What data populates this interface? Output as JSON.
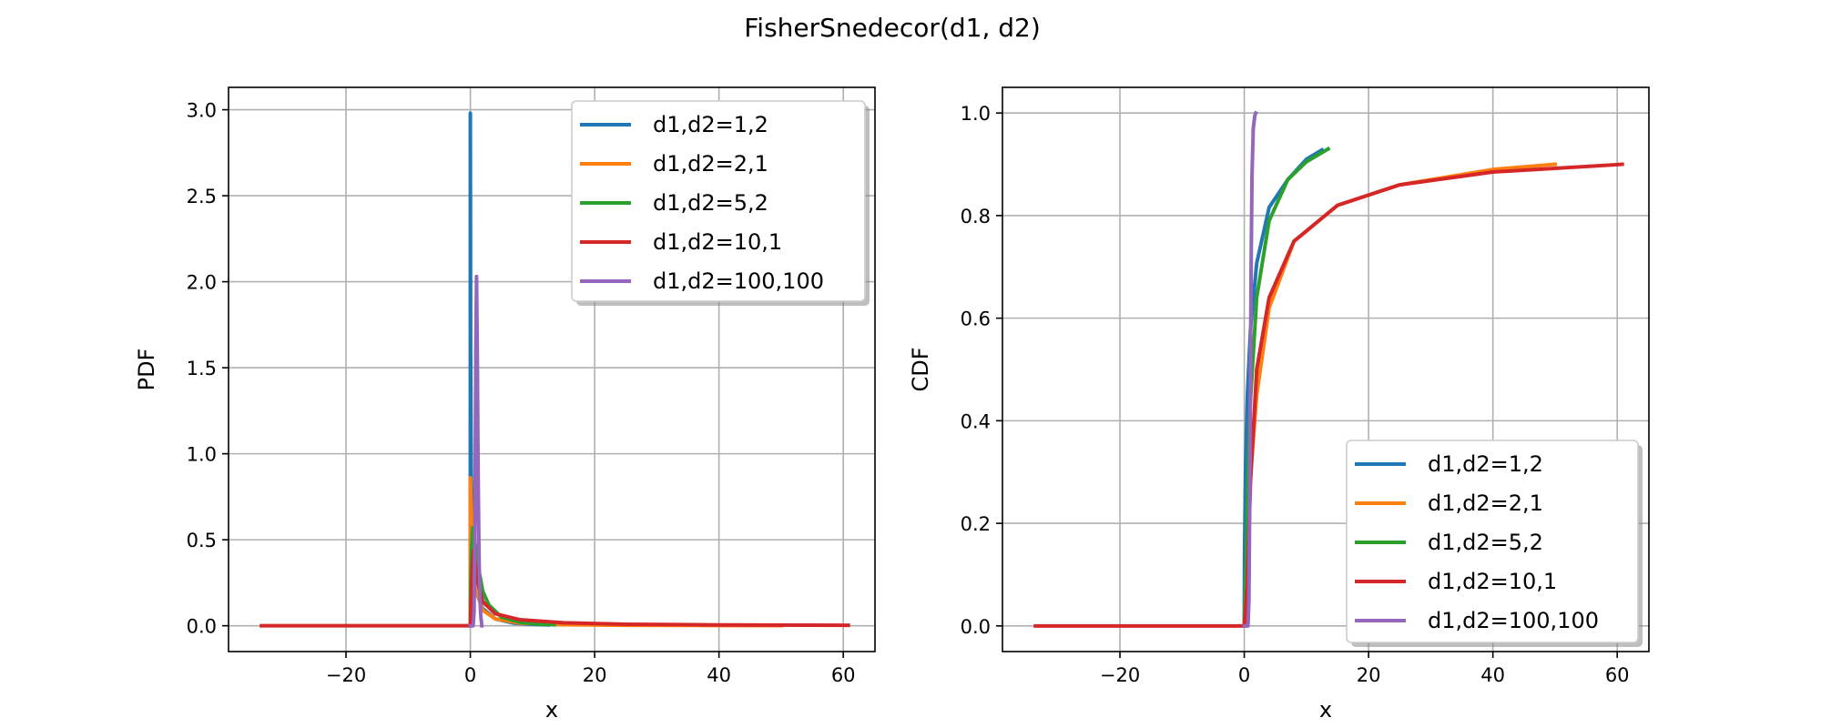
{
  "figure": {
    "title": "FisherSnedecor(d1, d2)"
  },
  "chart_data": [
    {
      "type": "line",
      "name": "pdf-chart",
      "xlabel": "x",
      "ylabel": "PDF",
      "xlim": [
        -38.9,
        65.1
      ],
      "ylim": [
        -0.15,
        3.13
      ],
      "xticks": [
        -20,
        0,
        20,
        40,
        60
      ],
      "xtick_labels": [
        "−20",
        "0",
        "20",
        "40",
        "60"
      ],
      "yticks": [
        0.0,
        0.5,
        1.0,
        1.5,
        2.0,
        2.5,
        3.0
      ],
      "ytick_labels": [
        "0.0",
        "0.5",
        "1.0",
        "1.5",
        "2.0",
        "2.5",
        "3.0"
      ],
      "grid": true,
      "legend": "top-right",
      "series": [
        {
          "name": "d1,d2=1,2",
          "color": "#1f77b4",
          "points": [
            [
              0.0,
              0.0
            ],
            [
              0.001,
              2.98
            ],
            [
              0.05,
              1.6
            ],
            [
              0.15,
              0.9
            ],
            [
              0.3,
              0.6
            ],
            [
              0.6,
              0.38
            ],
            [
              1.0,
              0.19
            ],
            [
              2,
              0.1
            ],
            [
              4,
              0.04
            ],
            [
              7,
              0.015
            ],
            [
              10,
              0.008
            ],
            [
              12.5,
              0.005
            ]
          ]
        },
        {
          "name": "d1,d2=2,1",
          "color": "#ff7f0e",
          "points": [
            [
              0.0,
              0.0
            ],
            [
              0.01,
              0.86
            ],
            [
              0.2,
              0.6
            ],
            [
              0.5,
              0.4
            ],
            [
              1.0,
              0.2
            ],
            [
              2.0,
              0.09
            ],
            [
              4.0,
              0.04
            ],
            [
              8,
              0.015
            ],
            [
              15,
              0.006
            ],
            [
              25,
              0.003
            ],
            [
              40,
              0.0015
            ],
            [
              50,
              0.001
            ]
          ]
        },
        {
          "name": "d1,d2=5,2",
          "color": "#2ca02c",
          "points": [
            [
              0.0,
              0.0
            ],
            [
              0.05,
              0.2
            ],
            [
              0.2,
              0.45
            ],
            [
              0.4,
              0.57
            ],
            [
              0.7,
              0.5
            ],
            [
              1.0,
              0.4
            ],
            [
              2.0,
              0.2
            ],
            [
              3,
              0.12
            ],
            [
              5,
              0.05
            ],
            [
              8,
              0.02
            ],
            [
              11,
              0.01
            ],
            [
              13.5,
              0.006
            ]
          ]
        },
        {
          "name": "d1,d2=10,1",
          "color": "#d62728",
          "points": [
            [
              -33.6,
              0.0
            ],
            [
              0.0,
              0.0
            ],
            [
              0.3,
              0.33
            ],
            [
              0.5,
              0.44
            ],
            [
              0.8,
              0.36
            ],
            [
              1.2,
              0.25
            ],
            [
              2,
              0.14
            ],
            [
              4,
              0.07
            ],
            [
              8,
              0.035
            ],
            [
              15,
              0.017
            ],
            [
              25,
              0.009
            ],
            [
              40,
              0.005
            ],
            [
              60.8,
              0.003
            ]
          ]
        },
        {
          "name": "d1,d2=100,100",
          "color": "#9467bd",
          "points": [
            [
              0.0,
              0.0
            ],
            [
              0.45,
              0.0
            ],
            [
              0.6,
              0.08
            ],
            [
              0.75,
              0.6
            ],
            [
              0.88,
              1.6
            ],
            [
              1.0,
              2.03
            ],
            [
              1.12,
              1.6
            ],
            [
              1.25,
              0.9
            ],
            [
              1.4,
              0.4
            ],
            [
              1.55,
              0.15
            ],
            [
              1.7,
              0.05
            ],
            [
              1.85,
              0.0
            ]
          ]
        }
      ]
    },
    {
      "type": "line",
      "name": "cdf-chart",
      "xlabel": "x",
      "ylabel": "CDF",
      "xlim": [
        -38.9,
        65.1
      ],
      "ylim": [
        -0.05,
        1.05
      ],
      "xticks": [
        -20,
        0,
        20,
        40,
        60
      ],
      "xtick_labels": [
        "−20",
        "0",
        "20",
        "40",
        "60"
      ],
      "yticks": [
        0.0,
        0.2,
        0.4,
        0.6,
        0.8,
        1.0
      ],
      "ytick_labels": [
        "0.0",
        "0.2",
        "0.4",
        "0.6",
        "0.8",
        "1.0"
      ],
      "grid": true,
      "legend": "bottom-right",
      "series": [
        {
          "name": "d1,d2=1,2",
          "color": "#1f77b4",
          "points": [
            [
              0.0,
              0.0
            ],
            [
              0.05,
              0.15
            ],
            [
              0.2,
              0.3
            ],
            [
              0.5,
              0.45
            ],
            [
              1.0,
              0.577
            ],
            [
              2,
              0.707
            ],
            [
              4,
              0.816
            ],
            [
              7,
              0.87
            ],
            [
              10,
              0.91
            ],
            [
              12.5,
              0.928
            ]
          ]
        },
        {
          "name": "d1,d2=2,1",
          "color": "#ff7f0e",
          "points": [
            [
              0.0,
              0.0
            ],
            [
              0.5,
              0.18
            ],
            [
              1.0,
              0.29
            ],
            [
              2,
              0.45
            ],
            [
              4,
              0.62
            ],
            [
              8,
              0.75
            ],
            [
              15,
              0.82
            ],
            [
              25,
              0.86
            ],
            [
              40,
              0.89
            ],
            [
              50,
              0.9
            ]
          ]
        },
        {
          "name": "d1,d2=5,2",
          "color": "#2ca02c",
          "points": [
            [
              0.0,
              0.0
            ],
            [
              0.3,
              0.1
            ],
            [
              0.6,
              0.3
            ],
            [
              1.0,
              0.44
            ],
            [
              2,
              0.64
            ],
            [
              4,
              0.79
            ],
            [
              7,
              0.87
            ],
            [
              10,
              0.905
            ],
            [
              13.5,
              0.93
            ]
          ]
        },
        {
          "name": "d1,d2=10,1",
          "color": "#d62728",
          "points": [
            [
              -33.6,
              0.0
            ],
            [
              -0.5,
              0.0
            ],
            [
              0.0,
              0.0
            ],
            [
              0.5,
              0.08
            ],
            [
              1.0,
              0.28
            ],
            [
              2,
              0.5
            ],
            [
              4,
              0.64
            ],
            [
              8,
              0.75
            ],
            [
              15,
              0.82
            ],
            [
              25,
              0.86
            ],
            [
              40,
              0.885
            ],
            [
              60.8,
              0.9
            ]
          ]
        },
        {
          "name": "d1,d2=100,100",
          "color": "#9467bd",
          "points": [
            [
              0.0,
              0.0
            ],
            [
              0.6,
              0.0
            ],
            [
              0.75,
              0.05
            ],
            [
              0.88,
              0.25
            ],
            [
              1.0,
              0.5
            ],
            [
              1.12,
              0.72
            ],
            [
              1.25,
              0.88
            ],
            [
              1.45,
              0.97
            ],
            [
              1.7,
              0.995
            ],
            [
              1.85,
              1.0
            ]
          ]
        }
      ]
    }
  ]
}
